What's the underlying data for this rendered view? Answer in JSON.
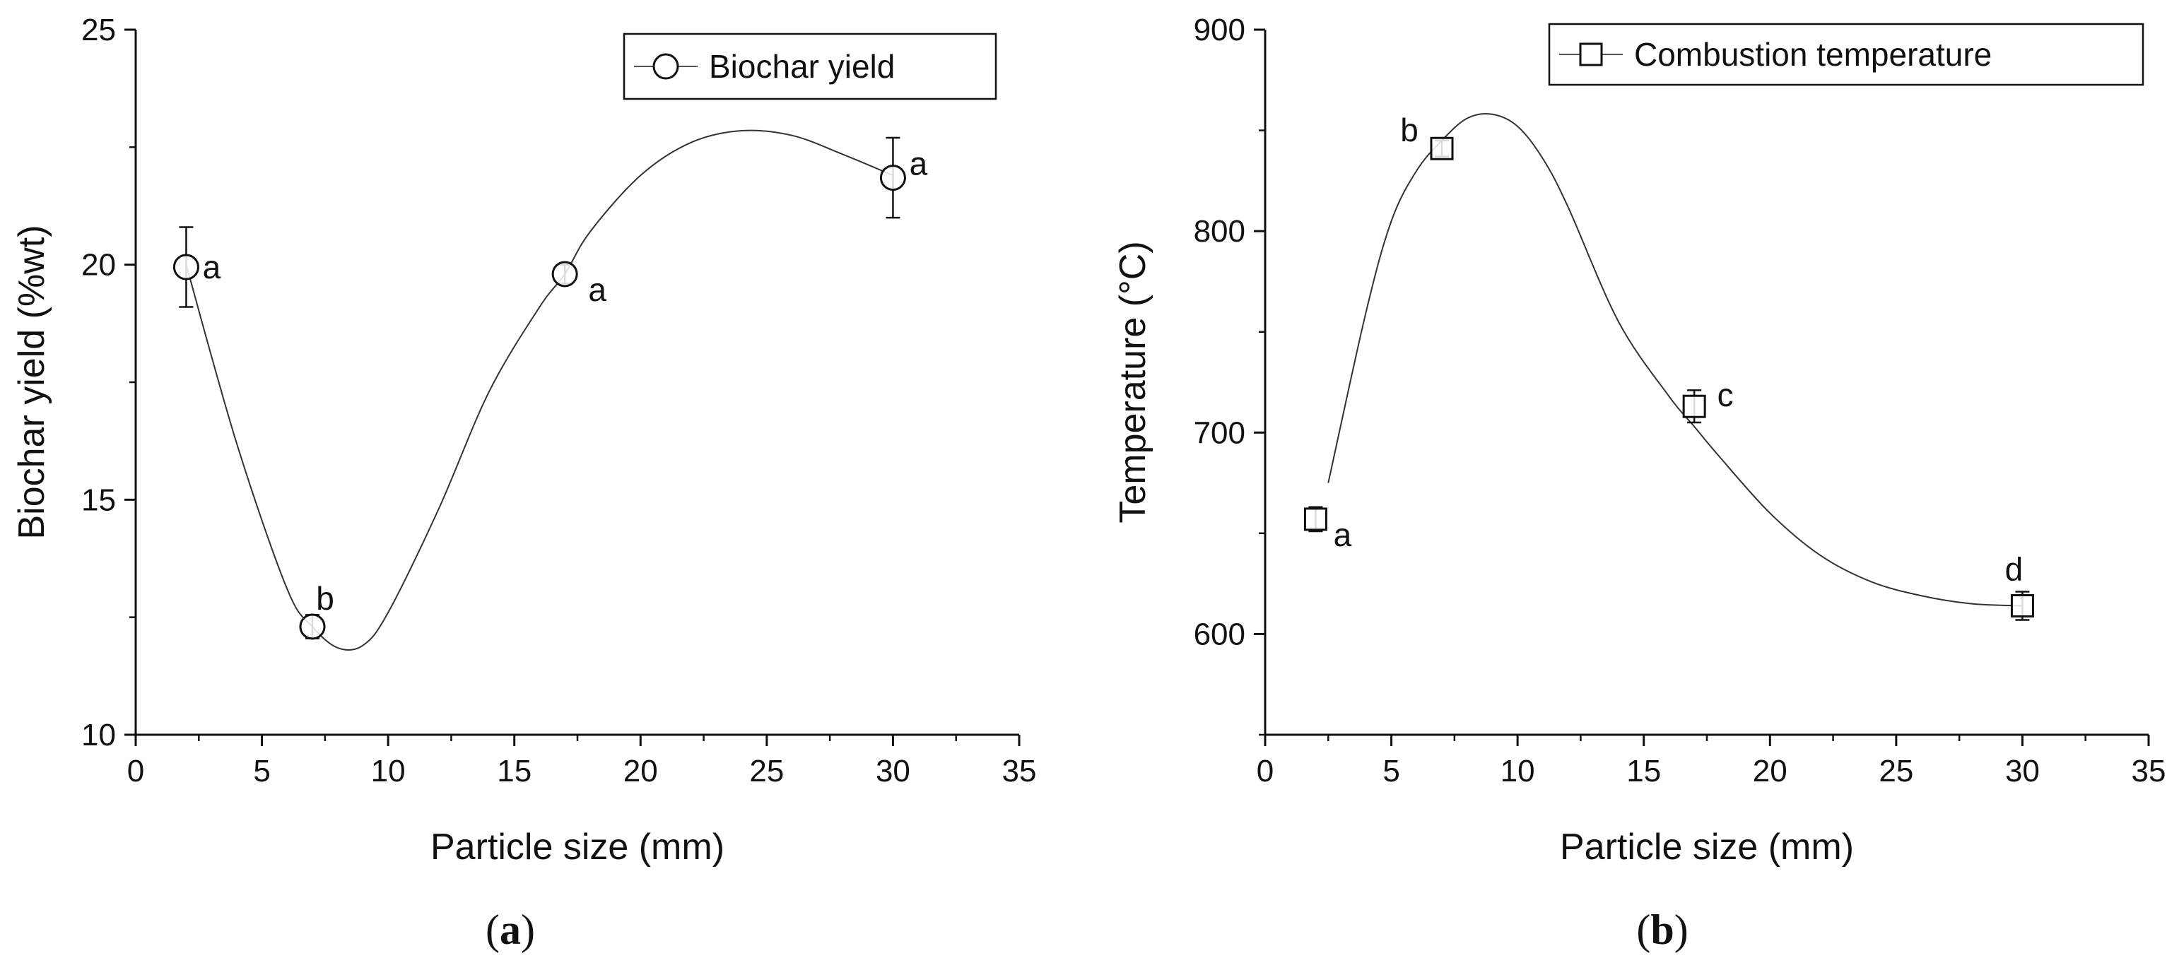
{
  "chart_data": [
    {
      "type": "scatter",
      "panel_label": {
        "open": "(",
        "letter": "a",
        "close": ")"
      },
      "xlabel": "Particle size (mm)",
      "ylabel": "Biochar yield (%wt)",
      "xlim": [
        0,
        35
      ],
      "ylim": [
        10,
        25
      ],
      "xticks": [
        "0",
        "5",
        "10",
        "15",
        "20",
        "25",
        "30",
        "35"
      ],
      "yticks": [
        "10",
        "15",
        "20",
        "25"
      ],
      "legend": {
        "position": "top-right",
        "entries": [
          "Biochar yield"
        ]
      },
      "marker": "circle",
      "grid": false,
      "series": [
        {
          "name": "Biochar yield",
          "x": [
            2,
            7,
            17,
            30
          ],
          "y": [
            19.95,
            12.3,
            19.8,
            21.85
          ],
          "error": [
            0.85,
            0.25,
            0.2,
            0.85
          ],
          "annotations": [
            "a",
            "b",
            "a",
            "a"
          ]
        }
      ],
      "fit_curve": {
        "x": [
          2,
          4,
          6,
          7,
          8,
          9,
          10,
          12,
          14,
          16,
          17,
          18,
          20,
          22,
          24,
          26,
          28,
          30
        ],
        "y": [
          20.0,
          16.2,
          13.1,
          12.3,
          11.85,
          11.9,
          12.6,
          14.8,
          17.3,
          19.1,
          19.8,
          20.7,
          21.9,
          22.6,
          22.85,
          22.75,
          22.35,
          21.9
        ]
      }
    },
    {
      "type": "scatter",
      "panel_label": {
        "open": "(",
        "letter": "b",
        "close": ")"
      },
      "xlabel": "Particle size (mm)",
      "ylabel": "Temperature (°C)",
      "xlim": [
        0,
        35
      ],
      "ylim": [
        550,
        900
      ],
      "xticks": [
        "0",
        "5",
        "10",
        "15",
        "20",
        "25",
        "30",
        "35"
      ],
      "yticks": [
        "600",
        "700",
        "800",
        "900"
      ],
      "legend": {
        "position": "top-right",
        "entries": [
          "Combustion temperature"
        ]
      },
      "marker": "square",
      "grid": false,
      "series": [
        {
          "name": "Combustion temperature",
          "x": [
            2,
            7,
            17,
            30
          ],
          "y": [
            657,
            841,
            713,
            614
          ],
          "error": [
            6,
            4,
            8,
            7
          ],
          "annotations": [
            "a",
            "b",
            "c",
            "d"
          ]
        }
      ],
      "fit_curve": {
        "x": [
          2.5,
          4,
          5,
          6,
          7,
          8,
          9,
          10,
          11,
          12,
          14,
          16,
          17,
          18,
          20,
          22,
          24,
          26,
          28,
          30
        ],
        "y": [
          675,
          760,
          805,
          830,
          845,
          856,
          858,
          852,
          836,
          812,
          755,
          718,
          703,
          688,
          660,
          639,
          626,
          619,
          615,
          614
        ]
      }
    }
  ]
}
